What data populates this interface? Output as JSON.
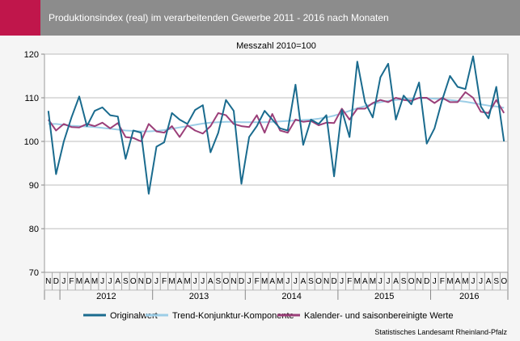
{
  "header": {
    "title": "Produktionsindex (real) im verarbeitenden Gewerbe 2011 - 2016 nach Monaten",
    "accent_color": "#c0164b",
    "bar_color": "#8c8c8c"
  },
  "source": "Statistisches Landesamt Rheinland-Pfalz",
  "chart_data": {
    "type": "line",
    "subtitle": "Messzahl 2010=100",
    "ylim": [
      70,
      120
    ],
    "yticks": [
      70,
      80,
      90,
      100,
      110,
      120
    ],
    "grid": true,
    "legend_position": "bottom",
    "x": [
      "N",
      "D",
      "J",
      "F",
      "M",
      "A",
      "M",
      "J",
      "J",
      "A",
      "S",
      "O",
      "N",
      "D",
      "J",
      "F",
      "M",
      "A",
      "M",
      "J",
      "J",
      "A",
      "S",
      "O",
      "N",
      "D",
      "J",
      "F",
      "M",
      "A",
      "M",
      "J",
      "J",
      "A",
      "S",
      "O",
      "N",
      "D",
      "J",
      "F",
      "M",
      "A",
      "M",
      "J",
      "J",
      "A",
      "S",
      "O",
      "N",
      "D",
      "J",
      "F",
      "M",
      "A",
      "M",
      "J",
      "J",
      "A",
      "S",
      "O"
    ],
    "year_groups": [
      {
        "label": "2012",
        "start": 2,
        "end": 13
      },
      {
        "label": "2013",
        "start": 14,
        "end": 25
      },
      {
        "label": "2014",
        "start": 26,
        "end": 37
      },
      {
        "label": "2015",
        "start": 38,
        "end": 49
      },
      {
        "label": "2016",
        "start": 50,
        "end": 59
      }
    ],
    "series": [
      {
        "name": "Originalwert",
        "color": "#1a6b8e",
        "width": 2,
        "values": [
          107,
          92.5,
          100,
          105.5,
          110.3,
          103.5,
          107,
          107.8,
          106,
          105.7,
          96,
          102.5,
          102,
          88,
          98.8,
          99.8,
          106.5,
          105,
          104,
          107.2,
          108.3,
          97.5,
          102,
          109.5,
          107,
          90.3,
          101,
          103.5,
          107,
          105,
          103,
          102.5,
          113,
          99.2,
          105,
          104,
          106,
          92,
          107.2,
          101,
          118.3,
          109,
          105.5,
          114.7,
          117.8,
          105,
          110.5,
          108.5,
          113.5,
          99.5,
          103,
          109.5,
          115,
          112.5,
          112,
          119.5,
          108,
          105.3,
          112.5,
          100
        ]
      },
      {
        "name": "Trend-Konjunktur-Komponente",
        "color": "#9ccde6",
        "width": 2,
        "values": [
          104,
          104,
          103.8,
          103.6,
          103.5,
          103.4,
          103.3,
          103.1,
          102.9,
          102.7,
          102.5,
          102.4,
          102.3,
          102.3,
          102.4,
          102.6,
          102.9,
          103.2,
          103.5,
          103.8,
          104.1,
          104.3,
          104.4,
          104.5,
          104.5,
          104.4,
          104.4,
          104.4,
          104.4,
          104.5,
          104.6,
          104.7,
          104.8,
          104.9,
          105,
          105.2,
          105.5,
          105.9,
          106.4,
          107,
          107.6,
          108.1,
          108.6,
          109,
          109.3,
          109.5,
          109.7,
          109.8,
          109.9,
          109.9,
          109.8,
          109.7,
          109.5,
          109.3,
          109.1,
          108.8,
          108.5,
          108.2,
          108,
          107.7
        ]
      },
      {
        "name": "Kalender- und saisonbereinigte Werte",
        "color": "#9b3f79",
        "width": 2,
        "values": [
          105,
          102.5,
          104,
          103.3,
          103.2,
          104,
          103.5,
          104.3,
          103,
          104.2,
          101,
          100.8,
          100,
          104,
          102.3,
          102,
          103.5,
          101,
          103.7,
          102.5,
          101.8,
          103.5,
          106.5,
          106,
          104,
          103.5,
          103.3,
          106,
          102,
          106.3,
          102.5,
          102,
          105,
          104.5,
          104.7,
          103.7,
          104.3,
          104.2,
          107.5,
          105,
          107.5,
          107.5,
          108.8,
          109.5,
          109,
          110,
          109.5,
          109.3,
          110,
          110,
          108.8,
          110,
          109,
          109,
          111.3,
          110,
          106.8,
          106.5,
          109.5,
          106.5
        ]
      }
    ]
  }
}
